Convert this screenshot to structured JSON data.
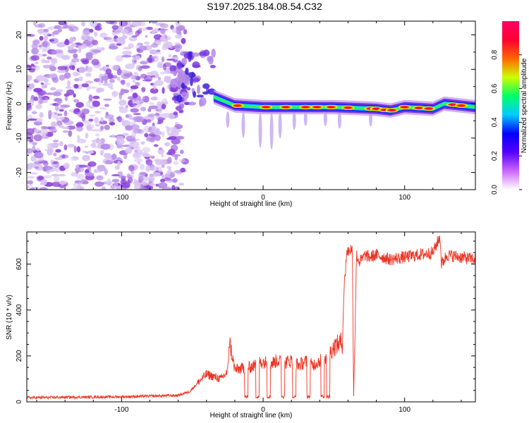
{
  "title": "S197.2025.184.08.54.C32",
  "colors": {
    "axis": "#000000",
    "snr_line": "#ee3322",
    "noise_purple": "#8a3fd8",
    "noise_light": "#d8c2f2"
  },
  "chart_data": [
    {
      "type": "heatmap",
      "xlabel": "Height of straight line (km)",
      "ylabel": "Frequency (Hz)",
      "xlim": [
        -167,
        150
      ],
      "ylim": [
        -25,
        24
      ],
      "x_ticks": [
        -100,
        0,
        100
      ],
      "y_ticks": [
        -20,
        -10,
        0,
        10,
        20
      ],
      "grid": false,
      "colorbar": {
        "label": "Normalized spectral amplitude",
        "range": [
          0,
          1
        ],
        "ticks": [
          0.0,
          0.2,
          0.4,
          0.6,
          0.8
        ],
        "tick_labels": [
          "0.0",
          "0.2",
          "0.4",
          "0.6",
          "0.8"
        ],
        "stops": [
          "#ffffff",
          "#cc66ff",
          "#5500ff",
          "#0000ff",
          "#00ccff",
          "#00ff66",
          "#ccff00",
          "#ff6600",
          "#ff0033",
          "#ff0066"
        ]
      },
      "regions": [
        {
          "name": "noise",
          "x_range": [
            -167,
            -55
          ],
          "freq_range": [
            -25,
            24
          ],
          "amplitude": 0.1
        },
        {
          "name": "onset",
          "x_range": [
            -65,
            -35
          ],
          "freq_range": [
            0,
            15
          ],
          "amplitude": 0.25
        },
        {
          "name": "signal_band",
          "x_range": [
            -35,
            150
          ],
          "freq_range": [
            -2.5,
            1.5
          ],
          "amplitude": 0.8
        }
      ],
      "hot_spots_x": [
        -18,
        2,
        16,
        30,
        38,
        48,
        60,
        76,
        80,
        86,
        91,
        100,
        110,
        117,
        134,
        140
      ],
      "ridge": [
        [
          -35,
          2
        ],
        [
          -20,
          -0.5
        ],
        [
          0,
          -1
        ],
        [
          50,
          -1
        ],
        [
          80,
          -1.5
        ],
        [
          90,
          -2
        ],
        [
          100,
          -1
        ],
        [
          120,
          -1.5
        ],
        [
          128,
          0
        ],
        [
          150,
          -1
        ]
      ]
    },
    {
      "type": "line",
      "xlabel": "Height of straight line (km)",
      "ylabel": "SNR (10 * v/v)",
      "xlim": [
        -167,
        150
      ],
      "ylim": [
        0,
        740
      ],
      "x_ticks": [
        -100,
        0,
        100
      ],
      "y_ticks": [
        0,
        200,
        400,
        600
      ],
      "grid": false,
      "series": [
        {
          "x": [
            -167,
            -140,
            -100,
            -60,
            -52,
            -45,
            -40,
            -35,
            -30,
            -25,
            -24,
            -20,
            -10,
            -5,
            -3,
            0,
            5,
            10,
            15,
            20,
            25,
            30,
            35,
            40,
            44,
            48,
            50,
            55,
            56,
            57,
            58,
            59,
            63,
            64,
            66,
            68,
            70,
            72,
            75,
            80,
            90,
            100,
            110,
            120,
            125,
            126,
            130,
            140,
            150
          ],
          "y": [
            18,
            20,
            22,
            28,
            45,
            90,
            120,
            110,
            100,
            130,
            270,
            140,
            150,
            160,
            170,
            175,
            165,
            180,
            170,
            180,
            160,
            175,
            160,
            180,
            190,
            220,
            240,
            260,
            250,
            470,
            560,
            650,
            670,
            30,
            640,
            610,
            620,
            640,
            630,
            640,
            620,
            630,
            640,
            650,
            720,
            600,
            640,
            630,
            620
          ]
        }
      ]
    }
  ]
}
